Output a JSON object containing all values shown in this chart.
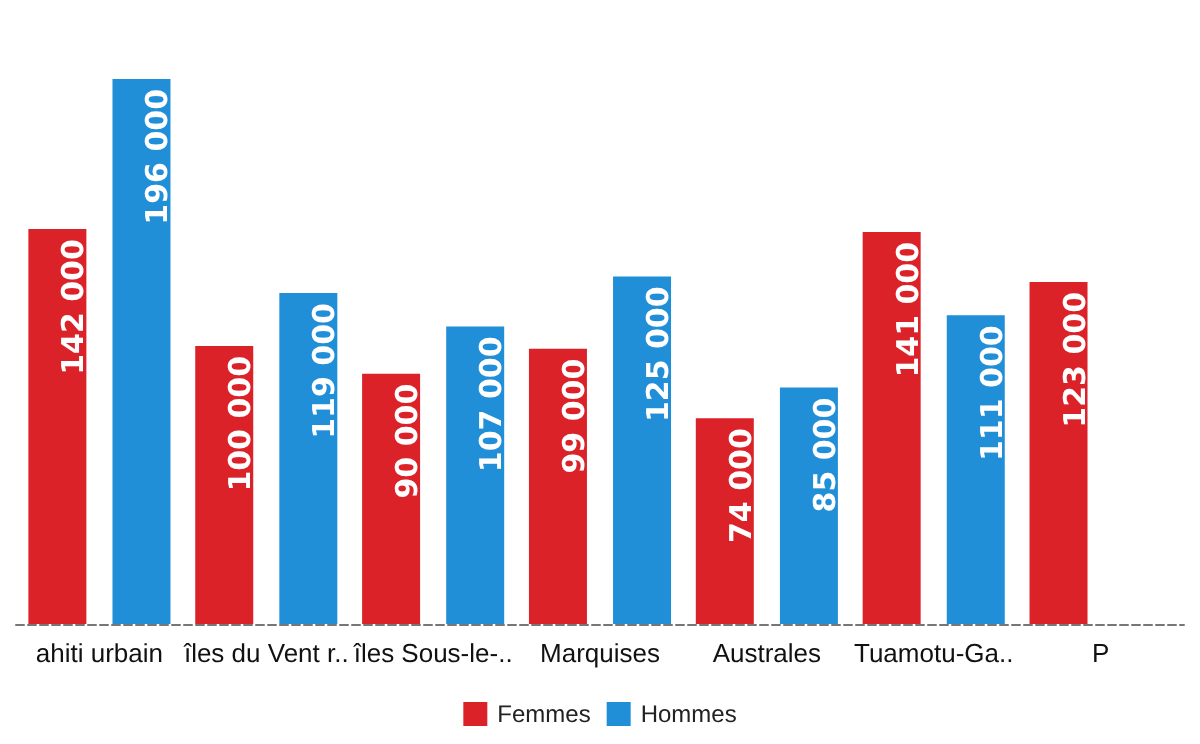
{
  "chart_data": {
    "type": "bar",
    "categories": [
      "ahiti urbain",
      "îles du Vent r..",
      "îles Sous-le-..",
      "Marquises",
      "Australes",
      "Tuamotu-Ga..",
      "P"
    ],
    "series": [
      {
        "name": "Femmes",
        "color": "#dc2229",
        "values": [
          142000,
          100000,
          90000,
          99000,
          74000,
          141000,
          123000
        ]
      },
      {
        "name": "Hommes",
        "color": "#218fd8",
        "values": [
          196000,
          119000,
          107000,
          125000,
          85000,
          111000,
          null
        ]
      }
    ],
    "data_labels": true,
    "legend": "bottom"
  }
}
